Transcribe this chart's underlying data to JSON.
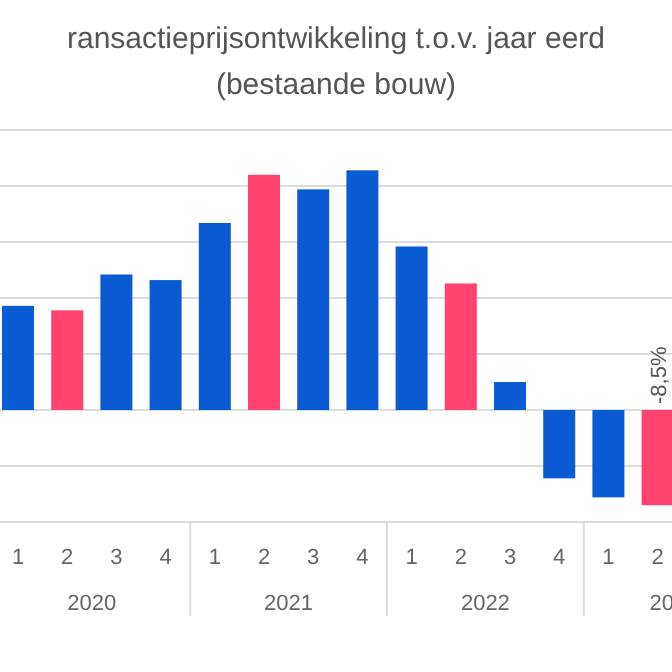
{
  "chart_data": {
    "type": "bar",
    "title": "ransactieprijsontwikkeling t.o.v. jaar eerd",
    "subtitle": "(bestaande bouw)",
    "categories": [
      "1",
      "2",
      "3",
      "4",
      "1",
      "2",
      "3",
      "4",
      "1",
      "2",
      "3",
      "4",
      "1",
      "2"
    ],
    "values": [
      9.3,
      8.9,
      12.1,
      11.6,
      16.7,
      21.0,
      19.7,
      21.4,
      14.6,
      11.3,
      2.5,
      -6.1,
      -7.8,
      -8.5
    ],
    "colors": [
      "#0a5bd3",
      "#ff426f",
      "#0a5bd3",
      "#0a5bd3",
      "#0a5bd3",
      "#ff426f",
      "#0a5bd3",
      "#0a5bd3",
      "#0a5bd3",
      "#ff426f",
      "#0a5bd3",
      "#0a5bd3",
      "#0a5bd3",
      "#ff426f"
    ],
    "value_labels": [
      null,
      null,
      null,
      null,
      null,
      null,
      null,
      null,
      null,
      null,
      null,
      null,
      null,
      "-8,5%"
    ],
    "annotations": [
      "2020",
      "2021",
      "2022",
      "20"
    ],
    "ylim": [
      -10,
      25
    ],
    "yticks": [
      {
        "value": -10,
        "label": null
      },
      {
        "value": -5,
        "label": null
      },
      {
        "value": 0,
        "label": null
      },
      {
        "value": 5,
        "label": null
      },
      {
        "value": 10,
        "label": null
      },
      {
        "value": 15,
        "label": null
      },
      {
        "value": 20,
        "label": null
      },
      {
        "value": 25,
        "label": null
      }
    ],
    "tick_labels": "x",
    "grid": "y"
  }
}
